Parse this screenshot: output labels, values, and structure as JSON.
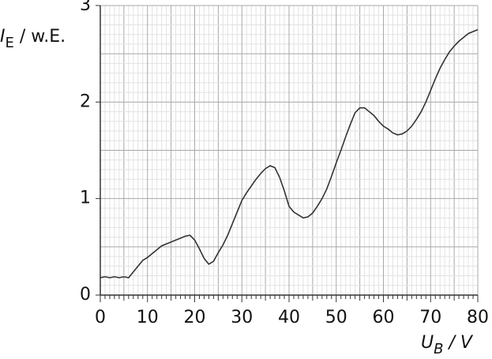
{
  "chart_data": {
    "type": "line",
    "y_label": {
      "symbol": "I",
      "subscript": "E",
      "unit": " / w.E."
    },
    "x_label": {
      "symbol": "U",
      "subscript": "B",
      "unit": " / V"
    },
    "x": [
      0,
      1,
      2,
      3,
      4,
      5,
      6,
      7,
      8,
      9,
      10,
      11,
      12,
      13,
      14,
      15,
      16,
      17,
      18,
      19,
      20,
      21,
      22,
      23,
      24,
      25,
      26,
      27,
      28,
      29,
      30,
      31,
      32,
      33,
      34,
      35,
      36,
      37,
      38,
      39,
      40,
      41,
      42,
      43,
      44,
      45,
      46,
      47,
      48,
      49,
      50,
      51,
      52,
      53,
      54,
      55,
      56,
      57,
      58,
      59,
      60,
      61,
      62,
      63,
      64,
      65,
      66,
      67,
      68,
      69,
      70,
      71,
      72,
      73,
      74,
      75,
      76,
      77,
      78,
      79,
      80
    ],
    "series": [
      {
        "color": "#333333",
        "values": [
          0.18,
          0.19,
          0.18,
          0.19,
          0.18,
          0.19,
          0.18,
          0.24,
          0.3,
          0.36,
          0.39,
          0.43,
          0.47,
          0.51,
          0.53,
          0.55,
          0.57,
          0.59,
          0.61,
          0.62,
          0.57,
          0.48,
          0.38,
          0.32,
          0.35,
          0.44,
          0.52,
          0.62,
          0.74,
          0.86,
          0.98,
          1.06,
          1.13,
          1.2,
          1.26,
          1.31,
          1.34,
          1.32,
          1.22,
          1.08,
          0.92,
          0.86,
          0.83,
          0.8,
          0.81,
          0.85,
          0.92,
          1.0,
          1.1,
          1.23,
          1.37,
          1.5,
          1.64,
          1.77,
          1.89,
          1.94,
          1.94,
          1.9,
          1.86,
          1.8,
          1.75,
          1.72,
          1.68,
          1.66,
          1.67,
          1.7,
          1.75,
          1.82,
          1.9,
          2.0,
          2.12,
          2.24,
          2.35,
          2.44,
          2.52,
          2.58,
          2.63,
          2.67,
          2.71,
          2.73,
          2.75
        ]
      }
    ],
    "xlim": [
      0,
      80
    ],
    "xticks": [
      0,
      10,
      20,
      30,
      40,
      50,
      60,
      70,
      80
    ],
    "ylim": [
      0,
      3
    ],
    "yticks": [
      0,
      1,
      2,
      3
    ],
    "grid": true
  }
}
